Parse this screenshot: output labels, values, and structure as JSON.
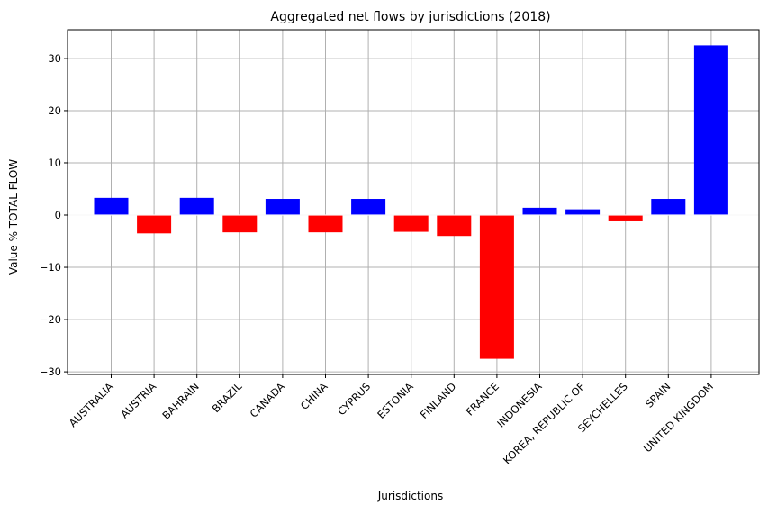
{
  "chart_data": {
    "type": "bar",
    "title": "Aggregated net flows by jurisdictions (2018)",
    "xlabel": "Jurisdictions",
    "ylabel": "Value % TOTAL FLOW",
    "categories": [
      "AUSTRALIA",
      "AUSTRIA",
      "BAHRAIN",
      "BRAZIL",
      "CANADA",
      "CHINA",
      "CYPRUS",
      "ESTONIA",
      "FINLAND",
      "FRANCE",
      "INDONESIA",
      "KOREA, REPUBLIC OF",
      "SEYCHELLES",
      "SPAIN",
      "UNITED KINGDOM"
    ],
    "values": [
      3.3,
      -3.5,
      3.3,
      -3.3,
      3.1,
      -3.3,
      3.1,
      -3.2,
      -4.0,
      -27.5,
      1.4,
      1.1,
      -1.2,
      3.1,
      32.5
    ],
    "ylim": [
      -30.5,
      35.5
    ],
    "yticks": [
      -30,
      -20,
      -10,
      0,
      10,
      20,
      30
    ],
    "grid": true,
    "colors": {
      "positive": "#0000ff",
      "negative": "#ff0000",
      "grid": "#b0b0b0",
      "zero_line": "#ffffff"
    }
  }
}
